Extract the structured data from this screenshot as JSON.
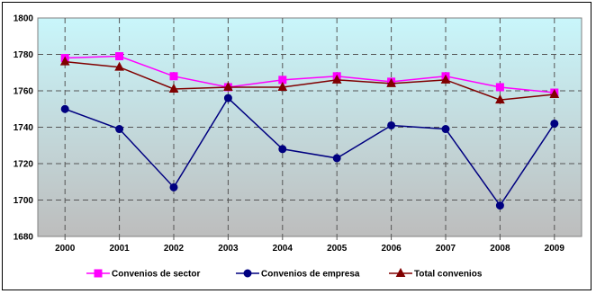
{
  "chart_data": {
    "type": "line",
    "title": "",
    "xlabel": "",
    "ylabel": "",
    "categories": [
      "2000",
      "2001",
      "2002",
      "2003",
      "2004",
      "2005",
      "2006",
      "2007",
      "2008",
      "2009"
    ],
    "ylim": [
      1680,
      1800
    ],
    "yticks": [
      1680,
      1700,
      1720,
      1740,
      1760,
      1780,
      1800
    ],
    "grid": true,
    "legend_position": "bottom",
    "series": [
      {
        "name": "Convenios  de sector",
        "color": "#ff00ff",
        "marker": "square",
        "values": [
          1778,
          1779,
          1768,
          1762,
          1766,
          1768,
          1765,
          1768,
          1762,
          1759
        ]
      },
      {
        "name": "Convenios de empresa",
        "color": "#000080",
        "marker": "circle",
        "values": [
          1750,
          1739,
          1707,
          1756,
          1728,
          1723,
          1741,
          1739,
          1697,
          1742
        ]
      },
      {
        "name": "Total  convenios",
        "color": "#800000",
        "marker": "triangle",
        "values": [
          1776,
          1773,
          1761,
          1762,
          1762,
          1766,
          1764,
          1766,
          1755,
          1758
        ]
      }
    ]
  }
}
